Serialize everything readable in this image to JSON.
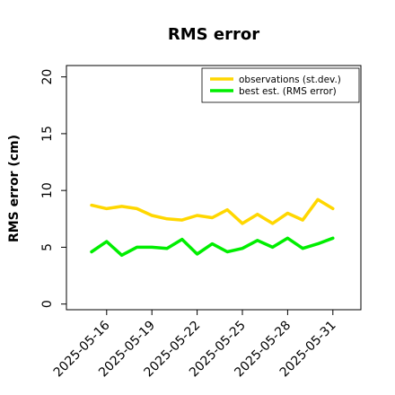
{
  "chart_data": {
    "type": "line",
    "title": "RMS error",
    "xlabel": "",
    "ylabel": "RMS error (cm)",
    "ylim": [
      -0.5,
      21
    ],
    "yticks": [
      0,
      5,
      10,
      15,
      20
    ],
    "x": [
      "2025-05-15",
      "2025-05-16",
      "2025-05-17",
      "2025-05-18",
      "2025-05-19",
      "2025-05-20",
      "2025-05-21",
      "2025-05-22",
      "2025-05-23",
      "2025-05-24",
      "2025-05-25",
      "2025-05-26",
      "2025-05-27",
      "2025-05-28",
      "2025-05-29",
      "2025-05-30",
      "2025-05-31"
    ],
    "xticks": [
      {
        "label": "2025-05-16",
        "color": "#000000"
      },
      {
        "label": "2025-05-19",
        "color": "#000000"
      },
      {
        "label": "2025-05-22",
        "color": "#228B22"
      },
      {
        "label": "2025-05-25",
        "color": "#000000"
      },
      {
        "label": "2025-05-28",
        "color": "#000000"
      },
      {
        "label": "2025-05-31",
        "color": "#000000"
      }
    ],
    "series": [
      {
        "name": "observations (st.dev.)",
        "color": "#FFD700",
        "values": [
          8.7,
          8.4,
          8.6,
          8.4,
          7.8,
          7.5,
          7.4,
          7.8,
          7.6,
          8.3,
          7.1,
          7.9,
          7.1,
          8.0,
          7.4,
          9.2,
          8.4
        ]
      },
      {
        "name": "best est. (RMS error)",
        "color": "#00EE00",
        "values": [
          4.6,
          5.5,
          4.3,
          5.0,
          5.0,
          4.9,
          5.7,
          4.4,
          5.3,
          4.6,
          4.9,
          5.6,
          5.0,
          5.8,
          4.9,
          5.3,
          5.8
        ]
      }
    ],
    "grid": false,
    "legend": "top-right"
  }
}
